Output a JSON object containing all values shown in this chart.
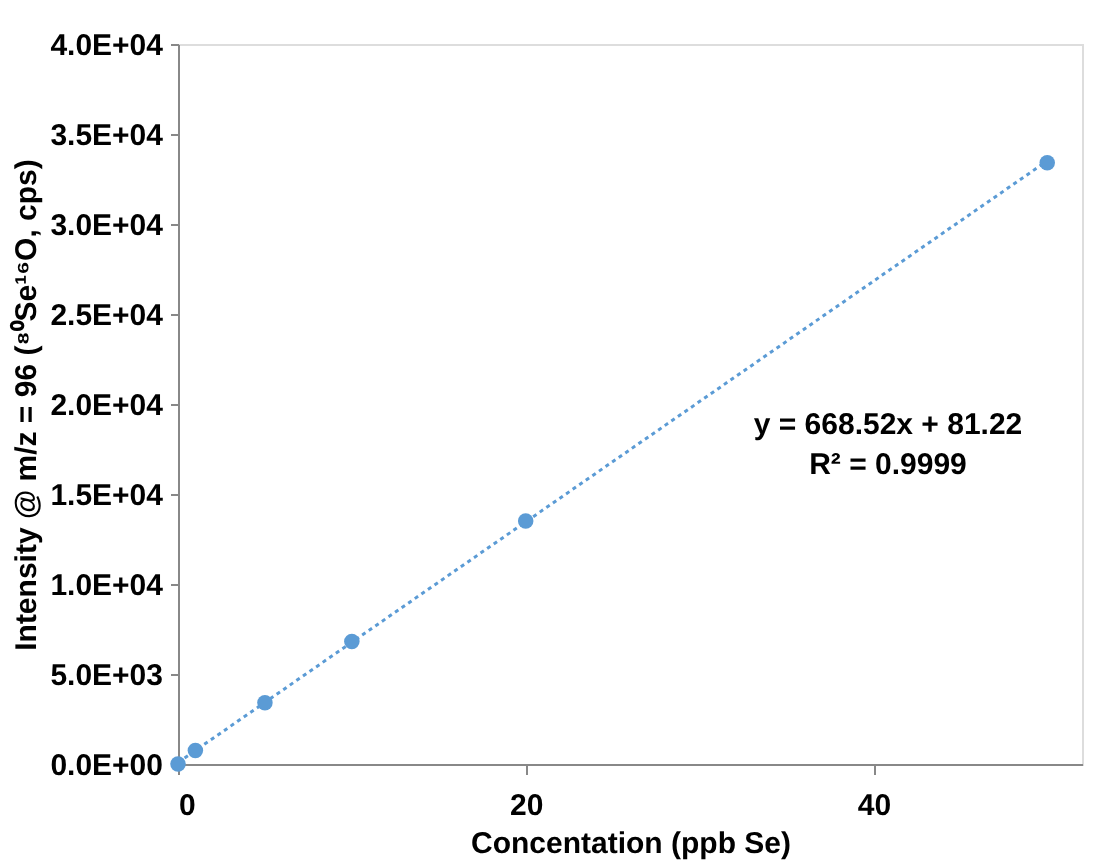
{
  "chart_data": {
    "type": "scatter",
    "xlabel": "Concentation (ppb Se)",
    "ylabel": "Intensity @ m/z = 96 (⁸⁰Se¹⁶O, cps)",
    "series": [
      {
        "color": "#5b9bd5",
        "x": [
          0,
          1,
          5,
          10,
          20,
          50
        ],
        "values": [
          0,
          750,
          3400,
          6800,
          13500,
          33400
        ],
        "marker": "circle"
      },
      {
        "type": "line",
        "color": "#5b9bd5",
        "x": [
          0,
          50
        ],
        "values": [
          81,
          33507
        ],
        "line_style": "dotted",
        "marker": "none"
      }
    ],
    "xlim": [
      0,
      52
    ],
    "xticks": [
      0,
      20,
      40
    ],
    "ylim": [
      0,
      40000
    ],
    "yticks": [
      {
        "value": 0,
        "label": "0.0E+00"
      },
      {
        "value": 5000,
        "label": "5.0E+03"
      },
      {
        "value": 10000,
        "label": "1.0E+04"
      },
      {
        "value": 15000,
        "label": "1.5E+04"
      },
      {
        "value": 20000,
        "label": "2.0E+04"
      },
      {
        "value": 25000,
        "label": "2.5E+04"
      },
      {
        "value": 30000,
        "label": "3.0E+04"
      },
      {
        "value": 35000,
        "label": "3.5E+04"
      },
      {
        "value": 40000,
        "label": "4.0E+04"
      }
    ],
    "annotations": [
      "y = 668.52x + 81.22",
      "R² = 0.9999"
    ],
    "grid": false
  }
}
